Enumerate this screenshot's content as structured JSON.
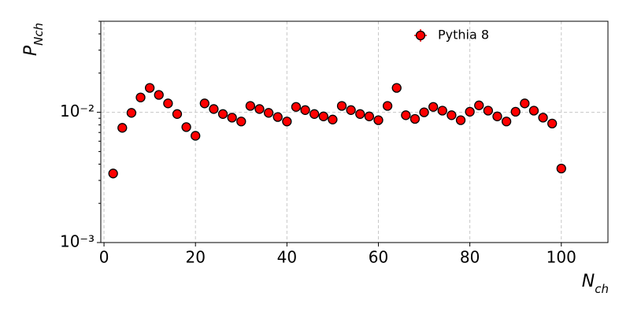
{
  "chart_data": {
    "type": "scatter",
    "x_label": "Nch",
    "y_label": "PNch",
    "xlim": [
      -0.7,
      110.2
    ],
    "xticks": [
      0,
      20,
      40,
      60,
      80,
      100
    ],
    "ylim": [
      0.001,
      0.05
    ],
    "y_log": true,
    "yticks": [
      {
        "value": 0.001,
        "label": "10⁻³"
      },
      {
        "value": 0.01,
        "label": "10⁻²"
      }
    ],
    "yminorticks": [
      0.002,
      0.003,
      0.004,
      0.005,
      0.006,
      0.007,
      0.008,
      0.009,
      0.02,
      0.03,
      0.04,
      0.05
    ],
    "grid": true,
    "legend": "upper center",
    "series": [
      {
        "name": "Pythia 8",
        "color": "#ff0000",
        "x": [
          2,
          4,
          6,
          8,
          10,
          12,
          14,
          16,
          18,
          20,
          22,
          24,
          26,
          28,
          30,
          32,
          34,
          36,
          38,
          40,
          42,
          44,
          46,
          48,
          50,
          52,
          54,
          56,
          58,
          60,
          62,
          64,
          66,
          68,
          70,
          72,
          74,
          76,
          78,
          80,
          82,
          84,
          86,
          88,
          90,
          92,
          94,
          96,
          98,
          100
        ],
        "values": [
          0.00339,
          0.0076,
          0.0099,
          0.013,
          0.0154,
          0.0136,
          0.0117,
          0.0097,
          0.0077,
          0.0066,
          0.0117,
          0.0106,
          0.0097,
          0.0091,
          0.0085,
          0.0112,
          0.0106,
          0.0099,
          0.0092,
          0.0085,
          0.011,
          0.0104,
          0.0097,
          0.0093,
          0.0088,
          0.0112,
          0.0104,
          0.0097,
          0.0093,
          0.0087,
          0.0112,
          0.0154,
          0.0095,
          0.0089,
          0.01,
          0.011,
          0.0103,
          0.0095,
          0.0087,
          0.0101,
          0.0113,
          0.0103,
          0.0093,
          0.0085,
          0.0101,
          0.0117,
          0.0103,
          0.0091,
          0.0082,
          0.0037
        ]
      }
    ]
  }
}
